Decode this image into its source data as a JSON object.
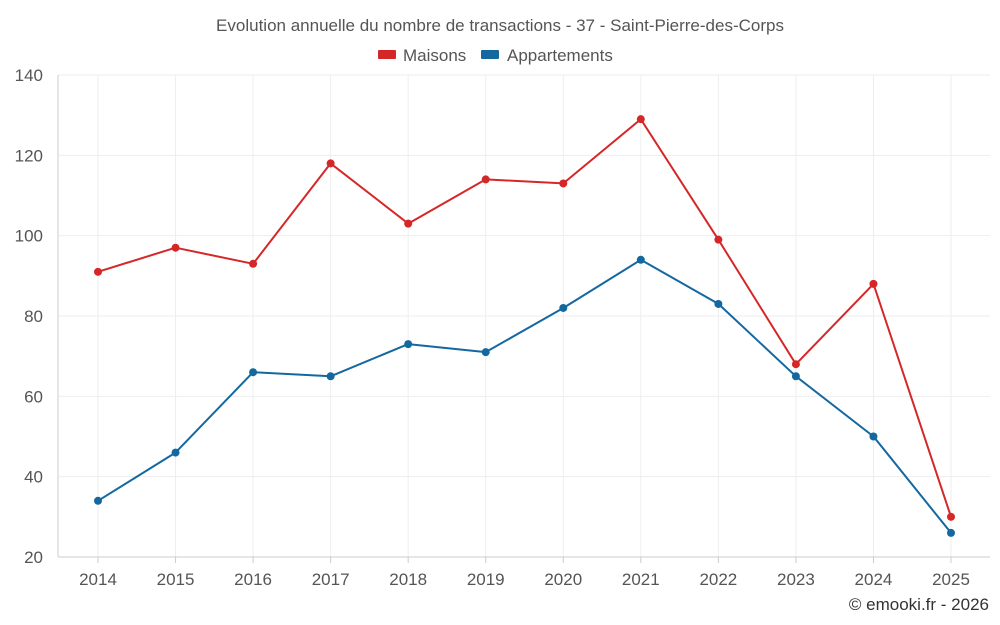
{
  "chart_data": {
    "type": "line",
    "title": "Evolution annuelle du nombre de transactions - 37 - Saint-Pierre-des-Corps",
    "x": [
      "2014",
      "2015",
      "2016",
      "2017",
      "2018",
      "2019",
      "2020",
      "2021",
      "2022",
      "2023",
      "2024",
      "2025"
    ],
    "series": [
      {
        "name": "Maisons",
        "color": "#d62728",
        "values": [
          91,
          97,
          93,
          118,
          103,
          114,
          113,
          129,
          99,
          68,
          88,
          30
        ]
      },
      {
        "name": "Appartements",
        "color": "#1468a0",
        "values": [
          34,
          46,
          66,
          65,
          73,
          71,
          82,
          94,
          83,
          65,
          50,
          26
        ]
      }
    ],
    "ylim": [
      20,
      140
    ],
    "yticks": [
      "20",
      "40",
      "60",
      "80",
      "100",
      "120",
      "140"
    ],
    "xlabel": "",
    "ylabel": "",
    "legend_position": "top-center",
    "grid": true
  },
  "credit": "© emooki.fr - 2026"
}
